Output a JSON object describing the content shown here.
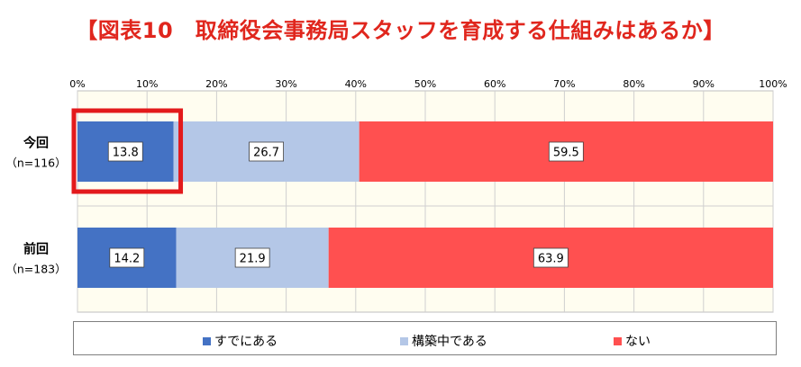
{
  "title": "【図表10　取締役会事務局スタッフを育成する仕組みはあるか】",
  "chart_data": {
    "type": "bar",
    "orientation": "horizontal",
    "stacked": true,
    "percent": true,
    "xlim": [
      0,
      100
    ],
    "xticks": [
      "0%",
      "10%",
      "20%",
      "30%",
      "40%",
      "50%",
      "60%",
      "70%",
      "80%",
      "90%",
      "100%"
    ],
    "categories": [
      {
        "name": "今回",
        "n": "（n=116）"
      },
      {
        "name": "前回",
        "n": "（n=183）"
      }
    ],
    "series": [
      {
        "name": "すでにある",
        "color": "#4472c4",
        "values": [
          13.8,
          14.2
        ]
      },
      {
        "name": "構築中である",
        "color": "#b4c7e7",
        "values": [
          26.7,
          21.9
        ]
      },
      {
        "name": "ない",
        "color": "#ff5050",
        "values": [
          59.5,
          63.9
        ]
      }
    ],
    "grid": "vertical",
    "legend": "bottom",
    "highlight": {
      "category": "今回",
      "series": "すでにある",
      "color": "#e31a1c"
    }
  }
}
